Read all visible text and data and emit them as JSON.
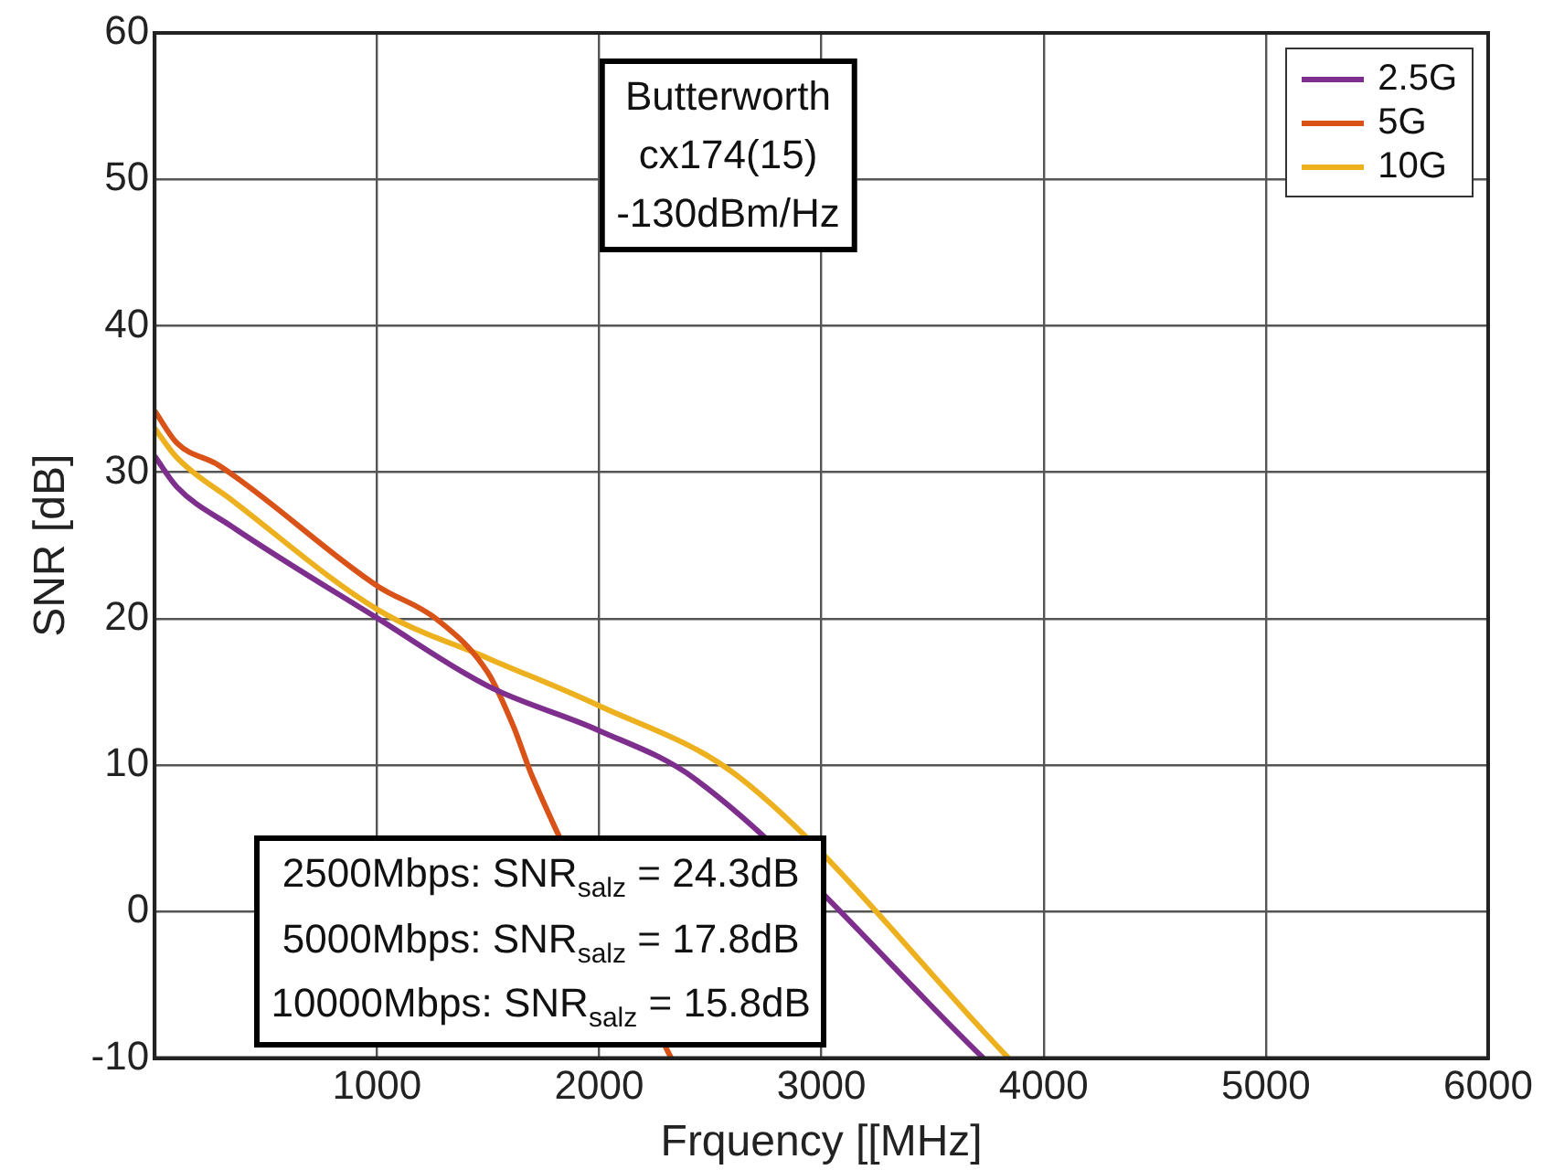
{
  "chart_data": {
    "type": "line",
    "xlabel": "Frquency [[MHz]",
    "ylabel": "SNR [dB]",
    "xlim": [
      0,
      6000
    ],
    "xticks": [
      1000,
      2000,
      3000,
      4000,
      5000,
      6000
    ],
    "ylim": [
      -10,
      60
    ],
    "yticks": [
      -10,
      0,
      10,
      20,
      30,
      40,
      50,
      60
    ],
    "grid": true,
    "legend": "top right",
    "marker": "none",
    "line_style": "solid",
    "series": [
      {
        "name": "2.5G",
        "color": "#7e2f8e",
        "x": [
          0,
          100,
          347,
          1006,
          1500,
          1994,
          2428,
          3729
        ],
        "values": [
          31.1,
          29,
          26.3,
          20,
          15.4,
          12.4,
          9.1,
          -10
        ]
      },
      {
        "name": "5G",
        "color": "#d95319",
        "x": [
          0,
          100,
          286,
          1006,
          1266,
          1500,
          1613,
          1700,
          2324
        ],
        "values": [
          34.2,
          32,
          30.5,
          22.2,
          20,
          16.3,
          12.7,
          9.2,
          -10
        ]
      },
      {
        "name": "10G",
        "color": "#edb120",
        "x": [
          0,
          100,
          347,
          1006,
          1500,
          1994,
          2628,
          3842
        ],
        "values": [
          33,
          31,
          28.1,
          20.6,
          17.3,
          14.1,
          9.2,
          -10
        ]
      }
    ],
    "annotations": [
      "Butterworth\ncx174(15)\n-130dBm/Hz",
      "2500Mbps: SNR$_{salz}$ = 24.3dB\n5000Mbps: SNR$_{salz}$ = 17.8dB\n10000Mbps: SNR$_{salz}$ = 15.8dB"
    ]
  }
}
